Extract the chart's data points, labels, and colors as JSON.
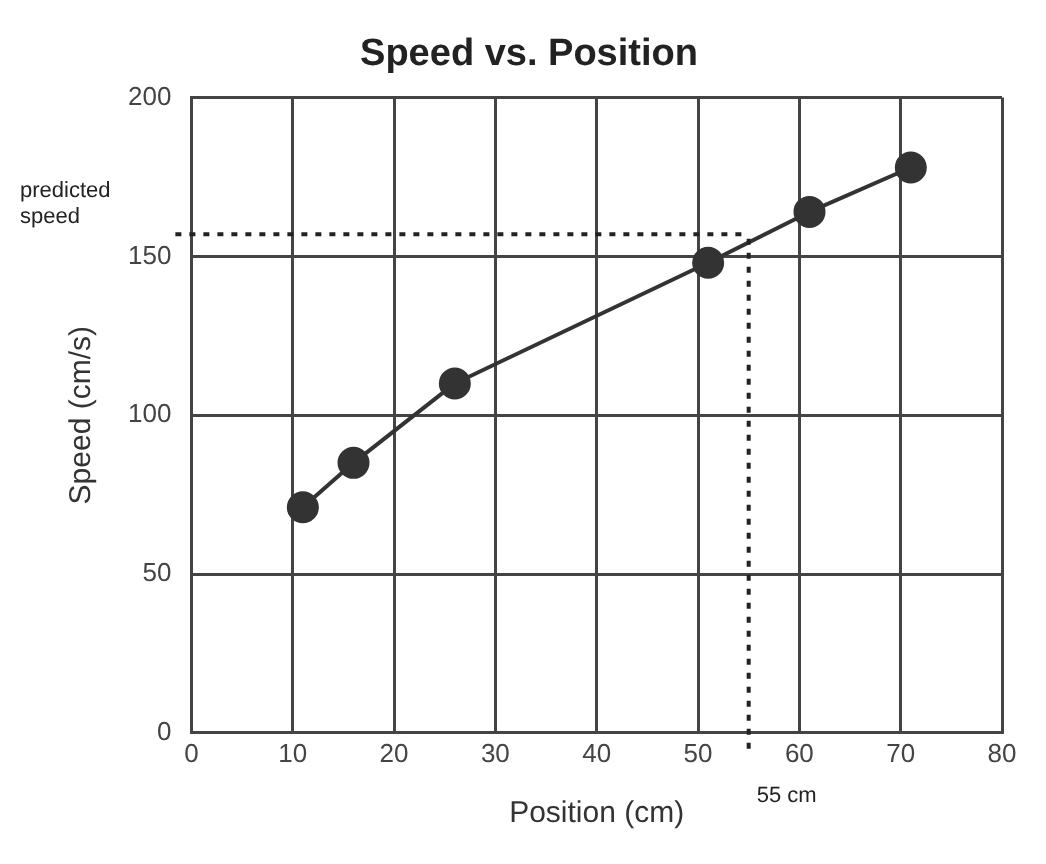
{
  "chart_data": {
    "type": "line",
    "title": "Speed vs. Position",
    "xlabel": "Position (cm)",
    "ylabel": "Speed (cm/s)",
    "x": [
      11,
      16,
      26,
      51,
      61,
      71
    ],
    "series": [
      {
        "color": "#333333",
        "values": [
          71,
          85,
          110,
          148,
          164,
          178
        ]
      }
    ],
    "xlim": [
      0,
      80
    ],
    "xticks": [
      0,
      10,
      20,
      30,
      40,
      50,
      60,
      70,
      80
    ],
    "ylim": [
      0,
      200
    ],
    "yticks": [
      0,
      50,
      100,
      150,
      200
    ],
    "ref_lines": [
      {
        "axis": "y",
        "value": 157,
        "label": "predicted speed",
        "line_style": "dotted"
      },
      {
        "axis": "x",
        "value": 55,
        "label": "55 cm",
        "line_style": "dotted"
      }
    ],
    "grid": true,
    "marker": "circle",
    "line_style": "solid",
    "legend": false
  }
}
